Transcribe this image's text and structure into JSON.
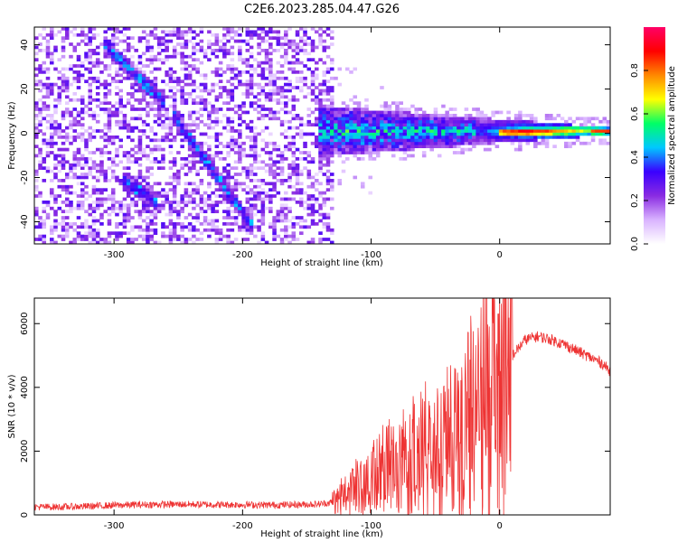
{
  "title": "C2E6.2023.285.04.47.G26",
  "chart_data": [
    {
      "type": "heatmap",
      "xlabel": "Height of straight line (km)",
      "ylabel": "Frequency (Hz)",
      "xlim": [
        -362,
        86
      ],
      "ylim": [
        -50,
        48
      ],
      "xticks": [
        -300,
        -200,
        -100,
        0
      ],
      "xtick_labels": [
        "-300",
        "-200",
        "-100",
        "0"
      ],
      "yticks": [
        -40,
        -20,
        0,
        20,
        40
      ],
      "ytick_labels": [
        "-40",
        "-20",
        "0",
        "20",
        "40"
      ],
      "colorbar": {
        "label": "Normalized spectral amplitude",
        "range": [
          0,
          1
        ],
        "ticks": [
          0,
          0.2,
          0.4,
          0.6,
          0.8
        ],
        "tick_labels": [
          "0.0",
          "0.2",
          "0.4",
          "0.6",
          "0.8"
        ],
        "colormap": [
          "#ffffff",
          "#d9b3ff",
          "#8a2be2",
          "#3a00ff",
          "#00c8ff",
          "#00ff66",
          "#ffff00",
          "#ff8800",
          "#ff0000",
          "#ff0066"
        ]
      },
      "features": {
        "noise_region_x": [
          -362,
          -130
        ],
        "ridge_1": {
          "x": [
            -305,
            -265
          ],
          "y": [
            39,
            16
          ]
        },
        "ridge_2": {
          "x": [
            -250,
            -195
          ],
          "y": [
            5,
            -40
          ]
        },
        "ridge_3": {
          "x": [
            -290,
            -270
          ],
          "y": [
            -22,
            -30
          ]
        },
        "central_band": {
          "x": [
            -140,
            86
          ],
          "y": [
            0,
            1.5
          ]
        }
      },
      "grid": false
    },
    {
      "type": "line",
      "xlabel": "Height of straight line (km)",
      "ylabel": "SNR (10 * v/v)",
      "xlim": [
        -362,
        86
      ],
      "ylim": [
        0,
        6800
      ],
      "xticks": [
        -300,
        -200,
        -100,
        0
      ],
      "xtick_labels": [
        "-300",
        "-200",
        "-100",
        "0"
      ],
      "yticks": [
        0,
        2000,
        4000,
        6000
      ],
      "ytick_labels": [
        "0",
        "2000",
        "4000",
        "6000"
      ],
      "color": "#ee3333",
      "series": [
        {
          "x": [
            -362,
            -340,
            -320,
            -300,
            -280,
            -260,
            -240,
            -220,
            -200,
            -180,
            -160,
            -140,
            -130,
            -120,
            -110,
            -100,
            -90,
            -80,
            -70,
            -60,
            -50,
            -40,
            -30,
            -20,
            -10,
            0,
            10,
            20,
            30,
            40,
            50,
            60,
            70,
            80,
            86
          ],
          "y": [
            250,
            250,
            270,
            300,
            320,
            330,
            330,
            320,
            320,
            310,
            320,
            340,
            400,
            600,
            900,
            1100,
            1300,
            1500,
            1700,
            1800,
            1900,
            2100,
            2500,
            3000,
            3600,
            4300,
            5000,
            5500,
            5600,
            5500,
            5350,
            5150,
            4950,
            4750,
            4500
          ]
        }
      ],
      "grid": false
    }
  ]
}
